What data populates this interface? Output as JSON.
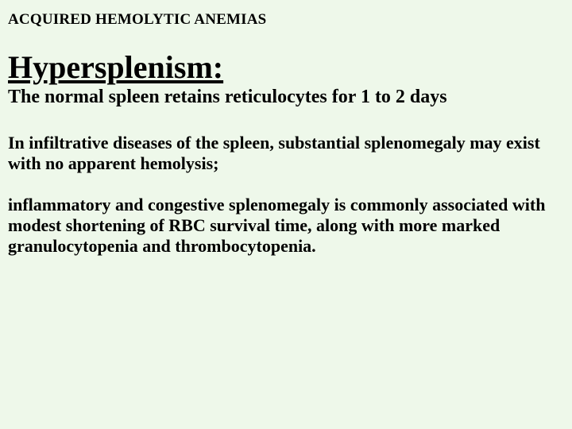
{
  "slide": {
    "overline": "ACQUIRED HEMOLYTIC ANEMIAS",
    "title": "Hypersplenism:",
    "subtitle": "The normal spleen retains reticulocytes for 1 to 2 days",
    "para1": " In infiltrative diseases of the spleen, substantial splenomegaly may exist with no apparent hemolysis;",
    "para2": "inflammatory and congestive splenomegaly is commonly associated with modest shortening of RBC survival time, along with more marked granulocytopenia and thrombocytopenia.",
    "background_color": "#eef8ea",
    "text_color": "#000000",
    "font_family": "Times New Roman",
    "overline_fontsize": 19,
    "title_fontsize": 40,
    "subtitle_fontsize": 24,
    "body_fontsize": 22
  }
}
